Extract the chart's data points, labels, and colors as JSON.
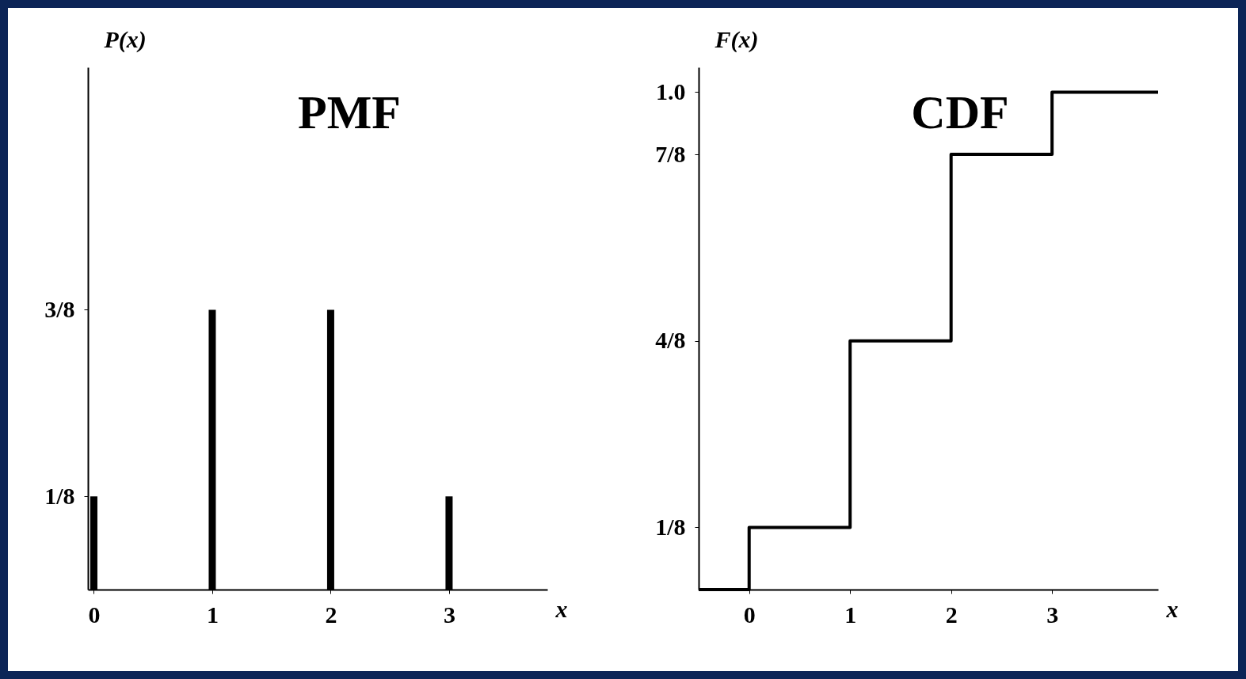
{
  "chart_data": [
    {
      "type": "bar",
      "title": "PMF",
      "xlabel": "x",
      "ylabel": "P(x)",
      "x": [
        0,
        1,
        2,
        3
      ],
      "values": [
        0.125,
        0.375,
        0.375,
        0.125
      ],
      "color": "#000000",
      "xlim": [
        -0.05,
        3.83
      ],
      "xticks": [
        0,
        1,
        2,
        3
      ],
      "ylim": [
        0,
        0.7
      ],
      "yticks": [
        {
          "value": 0.125,
          "label": "1/8"
        },
        {
          "value": 0.375,
          "label": "3/8"
        }
      ]
    },
    {
      "type": "step",
      "title": "CDF",
      "xlabel": "x",
      "ylabel": "F(x)",
      "x": [
        -0.5,
        0,
        1,
        2,
        3,
        4.05
      ],
      "values": [
        0,
        0.125,
        0.5,
        0.875,
        1,
        1
      ],
      "color": "#000000",
      "line_style": "solid",
      "xlim": [
        -0.5,
        4.05
      ],
      "xticks": [
        0,
        1,
        2,
        3
      ],
      "ylim": [
        0,
        1.05
      ],
      "yticks": [
        {
          "value": 0.125,
          "label": "1/8"
        },
        {
          "value": 0.5,
          "label": "4/8"
        },
        {
          "value": 0.875,
          "label": "7/8"
        },
        {
          "value": 1,
          "label": "1.0"
        }
      ]
    }
  ]
}
